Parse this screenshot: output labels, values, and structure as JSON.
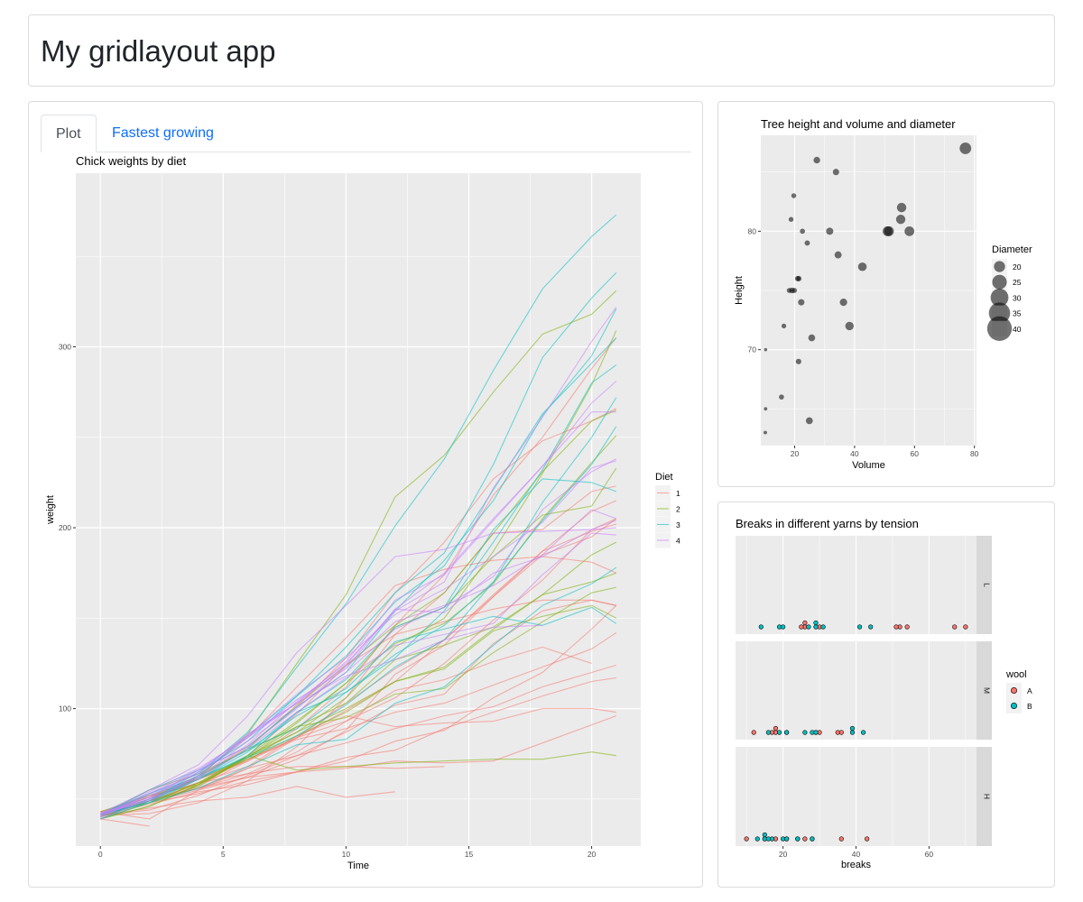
{
  "app": {
    "title": "My gridlayout app"
  },
  "tabs": [
    {
      "label": "Plot"
    },
    {
      "label": "Fastest growing"
    }
  ],
  "chart_data": [
    {
      "type": "line",
      "title": "Chick weights by diet",
      "xlabel": "Time",
      "ylabel": "weight",
      "xlim": [
        -1,
        22
      ],
      "ylim": [
        24,
        396
      ],
      "x_ticks": [
        0,
        5,
        10,
        15,
        20
      ],
      "y_ticks": [
        100,
        200,
        300
      ],
      "grid": true,
      "legend": {
        "title": "Diet",
        "position": "right"
      },
      "x": [
        0,
        2,
        4,
        6,
        8,
        10,
        12,
        14,
        16,
        18,
        20,
        21
      ],
      "series": [
        {
          "name": "1",
          "color": "#F8766D",
          "lines": [
            [
              42,
              51,
              59,
              64,
              76,
              93,
              106,
              125,
              149,
              171,
              199,
              205
            ],
            [
              40,
              49,
              58,
              72,
              84,
              103,
              122,
              138,
              162,
              187,
              209,
              215
            ],
            [
              43,
              39,
              55,
              67,
              84,
              99,
              115,
              138,
              163,
              187,
              198,
              202
            ],
            [
              42,
              49,
              56,
              67,
              74,
              87,
              102,
              108,
              136,
              154,
              160,
              157
            ],
            [
              41,
              42,
              48,
              60,
              79,
              106,
              141,
              164,
              197,
              199,
              220,
              223
            ],
            [
              41,
              49,
              59,
              74,
              97,
              124,
              141,
              148,
              155,
              160,
              160,
              157
            ],
            [
              41,
              49,
              57,
              71,
              89,
              112,
              146,
              174,
              218,
              250,
              288,
              305
            ],
            [
              42,
              50,
              61,
              71,
              84,
              93,
              110,
              116,
              126,
              134,
              125,
              null
            ],
            [
              42,
              51,
              59,
              68,
              85,
              96,
              90,
              92,
              93,
              100,
              100,
              98
            ],
            [
              41,
              44,
              52,
              63,
              74,
              81,
              89,
              96,
              101,
              112,
              120,
              124
            ],
            [
              43,
              51,
              63,
              84,
              112,
              139,
              168,
              177,
              182,
              184,
              181,
              175
            ],
            [
              41,
              49,
              56,
              62,
              72,
              88,
              119,
              135,
              162,
              185,
              195,
              205
            ],
            [
              41,
              48,
              53,
              60,
              65,
              67,
              71,
              70,
              71,
              81,
              91,
              96
            ],
            [
              41,
              49,
              62,
              79,
              101,
              128,
              164,
              192,
              227,
              248,
              259,
              266
            ],
            [
              41,
              49,
              56,
              64,
              68,
              68,
              67,
              68,
              null,
              null,
              null,
              null
            ],
            [
              41,
              45,
              49,
              51,
              57,
              51,
              54,
              null,
              null,
              null,
              null,
              null
            ],
            [
              42,
              51,
              61,
              72,
              83,
              89,
              98,
              103,
              113,
              123,
              133,
              142
            ],
            [
              39,
              35,
              null,
              null,
              null,
              null,
              null,
              null,
              null,
              null,
              null,
              null
            ],
            [
              43,
              48,
              55,
              62,
              65,
              71,
              82,
              88,
              106,
              120,
              144,
              157
            ],
            [
              41,
              47,
              54,
              58,
              65,
              73,
              77,
              89,
              98,
              107,
              115,
              117
            ]
          ]
        },
        {
          "name": "2",
          "color": "#7CAE00",
          "lines": [
            [
              40,
              50,
              62,
              86,
              125,
              163,
              217,
              240,
              275,
              307,
              318,
              331
            ],
            [
              41,
              55,
              64,
              77,
              90,
              95,
              108,
              111,
              131,
              148,
              164,
              167
            ],
            [
              43,
              52,
              61,
              73,
              90,
              103,
              127,
              135,
              145,
              163,
              170,
              175
            ],
            [
              42,
              52,
              58,
              74,
              66,
              68,
              70,
              71,
              72,
              72,
              76,
              74
            ],
            [
              40,
              49,
              62,
              78,
              102,
              124,
              146,
              164,
              197,
              231,
              259,
              265
            ],
            [
              42,
              48,
              57,
              74,
              93,
              114,
              136,
              147,
              169,
              205,
              236,
              251
            ],
            [
              39,
              46,
              58,
              73,
              87,
              100,
              115,
              123,
              144,
              163,
              185,
              192
            ],
            [
              39,
              46,
              58,
              73,
              92,
              114,
              145,
              156,
              184,
              207,
              212,
              233
            ],
            [
              39,
              48,
              59,
              74,
              87,
              106,
              134,
              150,
              187,
              230,
              279,
              309
            ],
            [
              42,
              48,
              59,
              72,
              85,
              98,
              115,
              122,
              143,
              151,
              157,
              150
            ]
          ]
        },
        {
          "name": "3",
          "color": "#00BFC4",
          "lines": [
            [
              42,
              53,
              62,
              73,
              85,
              102,
              123,
              138,
              170,
              204,
              235,
              256
            ],
            [
              41,
              49,
              65,
              82,
              107,
              129,
              159,
              179,
              221,
              263,
              291,
              305
            ],
            [
              39,
              50,
              63,
              77,
              96,
              111,
              137,
              144,
              151,
              146,
              156,
              147
            ],
            [
              41,
              49,
              63,
              85,
              107,
              134,
              164,
              186,
              235,
              294,
              327,
              341
            ],
            [
              41,
              53,
              64,
              87,
              123,
              158,
              201,
              238,
              287,
              332,
              361,
              373
            ],
            [
              39,
              48,
              61,
              76,
              98,
              116,
              145,
              156,
              199,
              227,
              225,
              220
            ],
            [
              41,
              48,
              56,
              68,
              80,
              83,
              103,
              112,
              135,
              157,
              169,
              178
            ],
            [
              41,
              49,
              61,
              74,
              98,
              109,
              128,
              154,
              192,
              232,
              280,
              290
            ],
            [
              42,
              50,
              61,
              78,
              89,
              109,
              130,
              146,
              170,
              214,
              250,
              272
            ],
            [
              41,
              55,
              66,
              79,
              101,
              120,
              154,
              182,
              215,
              262,
              295,
              321
            ]
          ]
        },
        {
          "name": "4",
          "color": "#C77CFF",
          "lines": [
            [
              42,
              51,
              66,
              85,
              103,
              124,
              155,
              153,
              175,
              184,
              199,
              204
            ],
            [
              42,
              49,
              63,
              84,
              103,
              126,
              160,
              174,
              204,
              234,
              269,
              281
            ],
            [
              42,
              55,
              69,
              96,
              131,
              157,
              184,
              188,
              197,
              198,
              199,
              200
            ],
            [
              42,
              51,
              65,
              86,
              103,
              118,
              127,
              138,
              145,
              146,
              null,
              null
            ],
            [
              41,
              50,
              61,
              78,
              98,
              117,
              135,
              141,
              147,
              174,
              197,
              196
            ],
            [
              40,
              52,
              62,
              82,
              101,
              120,
              144,
              156,
              173,
              210,
              231,
              238
            ],
            [
              41,
              53,
              66,
              79,
              100,
              123,
              148,
              157,
              168,
              185,
              210,
              205
            ],
            [
              39,
              50,
              62,
              80,
              104,
              125,
              154,
              170,
              222,
              261,
              303,
              322
            ],
            [
              40,
              53,
              64,
              85,
              108,
              128,
              152,
              166,
              184,
              203,
              233,
              237
            ],
            [
              41,
              54,
              67,
              84,
              105,
              122,
              155,
              175,
              205,
              234,
              264,
              264
            ]
          ]
        }
      ]
    },
    {
      "type": "scatter",
      "title": "Tree height and volume and diameter",
      "xlabel": "Volume",
      "ylabel": "Height",
      "xlim": [
        8.7,
        80.7
      ],
      "ylim": [
        61.9,
        88.1
      ],
      "x_ticks": [
        20,
        40,
        60,
        80
      ],
      "y_ticks": [
        70,
        80
      ],
      "grid": true,
      "legend": {
        "title": "Diameter",
        "position": "right",
        "entries": [
          20,
          25,
          30,
          35,
          40
        ]
      },
      "points": [
        [
          10.3,
          70,
          8.3
        ],
        [
          10.3,
          65,
          8.6
        ],
        [
          10.2,
          63,
          8.8
        ],
        [
          16.4,
          72,
          10.5
        ],
        [
          18.8,
          81,
          10.7
        ],
        [
          19.7,
          83,
          10.8
        ],
        [
          15.6,
          66,
          11.0
        ],
        [
          18.2,
          75,
          11.0
        ],
        [
          22.6,
          80,
          11.1
        ],
        [
          19.9,
          75,
          11.2
        ],
        [
          24.2,
          79,
          11.3
        ],
        [
          21.0,
          76,
          11.4
        ],
        [
          21.4,
          76,
          11.4
        ],
        [
          21.3,
          69,
          11.7
        ],
        [
          19.1,
          75,
          12.0
        ],
        [
          22.2,
          74,
          12.9
        ],
        [
          33.8,
          85,
          12.9
        ],
        [
          27.4,
          86,
          13.3
        ],
        [
          25.7,
          71,
          13.7
        ],
        [
          24.9,
          64,
          13.8
        ],
        [
          34.5,
          78,
          14.0
        ],
        [
          31.7,
          80,
          14.2
        ],
        [
          36.3,
          74,
          14.5
        ],
        [
          38.3,
          72,
          16.0
        ],
        [
          42.6,
          77,
          16.3
        ],
        [
          55.4,
          81,
          17.3
        ],
        [
          55.7,
          82,
          17.5
        ],
        [
          58.3,
          80,
          17.9
        ],
        [
          51.5,
          80,
          18.0
        ],
        [
          51.0,
          80,
          18.0
        ],
        [
          77.0,
          87,
          20.6
        ]
      ]
    },
    {
      "type": "dotplot",
      "title": "Breaks in different yarns by tension",
      "xlabel": "breaks",
      "xlim": [
        7,
        73
      ],
      "x_ticks": [
        20,
        40,
        60
      ],
      "grid": true,
      "legend": {
        "title": "wool",
        "position": "right",
        "entries": [
          {
            "name": "A",
            "color": "#F8766D"
          },
          {
            "name": "B",
            "color": "#00BFC4"
          }
        ]
      },
      "panels": [
        {
          "label": "L",
          "A": [
            26,
            30,
            54,
            25,
            70,
            52,
            51,
            26,
            67
          ],
          "B": [
            27,
            14,
            29,
            19,
            29,
            31,
            41,
            20,
            44
          ]
        },
        {
          "label": "M",
          "A": [
            18,
            21,
            29,
            17,
            12,
            18,
            35,
            30,
            36
          ],
          "B": [
            42,
            26,
            19,
            16,
            39,
            28,
            21,
            39,
            29
          ]
        },
        {
          "label": "H",
          "A": [
            36,
            21,
            24,
            18,
            10,
            43,
            28,
            15,
            26
          ],
          "B": [
            20,
            21,
            24,
            17,
            13,
            15,
            15,
            16,
            28
          ]
        }
      ]
    }
  ]
}
